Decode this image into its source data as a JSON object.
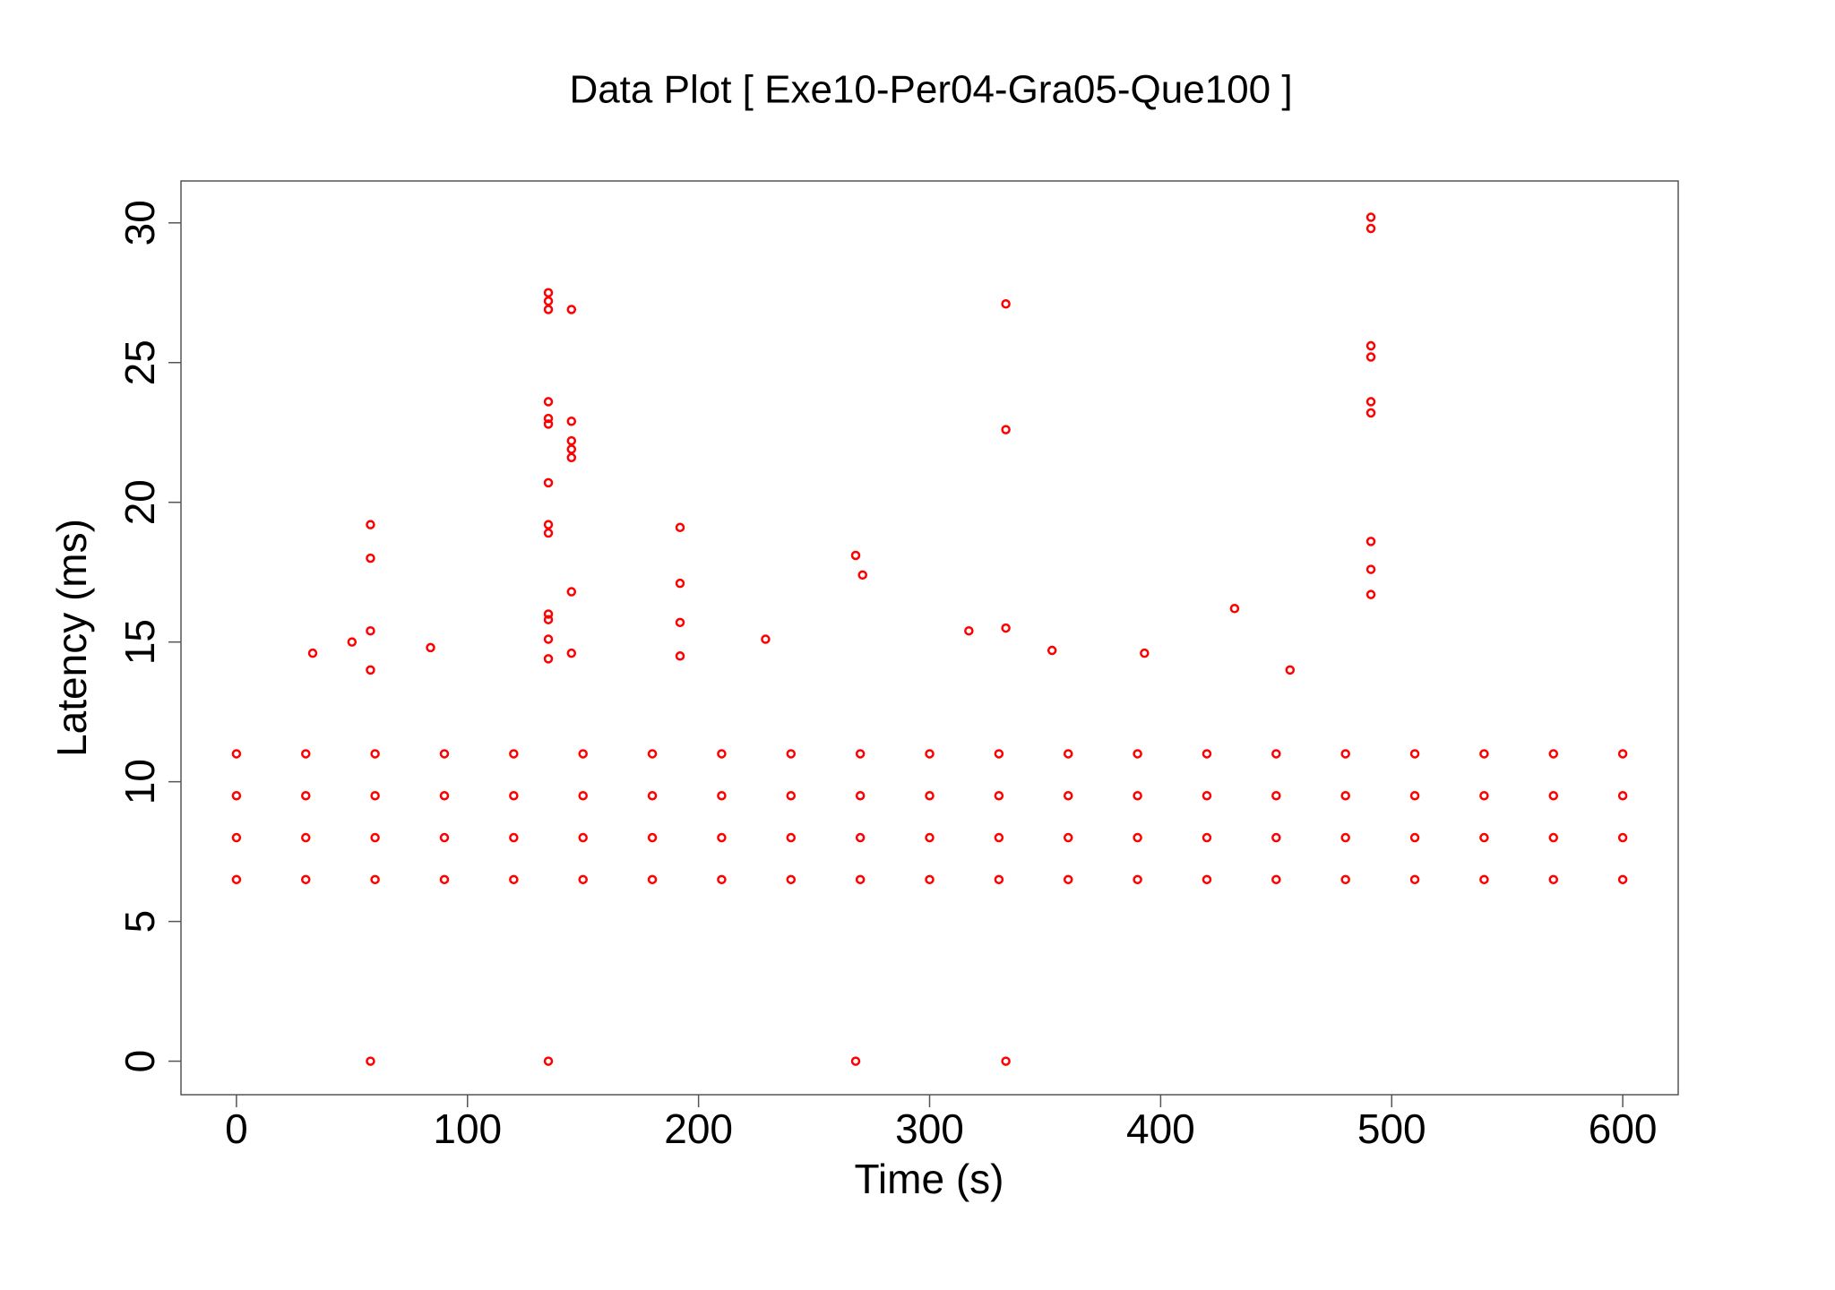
{
  "chart_data": {
    "type": "scatter",
    "title": "Data Plot [ Exe10-Per04-Gra05-Que100 ]",
    "x_label": "Time (s)",
    "y_label": "Latency (ms)",
    "color": "#ff0000",
    "xlim": [
      -24,
      624
    ],
    "ylim": [
      -1.2,
      31.5
    ],
    "xticks": [
      0,
      100,
      200,
      300,
      400,
      500,
      600
    ],
    "yticks": [
      0,
      5,
      10,
      15,
      20,
      25,
      30
    ],
    "x": [
      0,
      0,
      0,
      0,
      30,
      30,
      30,
      30,
      60,
      60,
      60,
      60,
      90,
      90,
      90,
      90,
      120,
      120,
      120,
      120,
      150,
      150,
      150,
      150,
      180,
      180,
      180,
      180,
      210,
      210,
      210,
      210,
      240,
      240,
      240,
      240,
      270,
      270,
      270,
      270,
      300,
      300,
      300,
      300,
      330,
      330,
      330,
      330,
      360,
      360,
      360,
      360,
      390,
      390,
      390,
      390,
      420,
      420,
      420,
      420,
      450,
      450,
      450,
      450,
      480,
      480,
      480,
      480,
      510,
      510,
      510,
      510,
      540,
      540,
      540,
      540,
      570,
      570,
      570,
      570,
      600,
      600,
      600,
      600,
      58,
      58,
      58,
      58,
      58,
      135,
      135,
      135,
      135,
      135,
      135,
      135,
      135,
      135,
      135,
      135,
      135,
      135,
      135,
      145,
      145,
      145,
      145,
      145,
      145,
      145,
      192,
      192,
      192,
      192,
      268,
      268,
      271,
      333,
      333,
      333,
      333,
      491,
      491,
      491,
      491,
      491,
      491,
      491,
      491,
      491,
      432,
      229,
      33,
      50,
      84,
      317,
      353,
      393,
      456
    ],
    "values": [
      6.5,
      8,
      9.5,
      11,
      6.5,
      8,
      9.5,
      11,
      6.5,
      8,
      9.5,
      11,
      6.5,
      8,
      9.5,
      11,
      6.5,
      8,
      9.5,
      11,
      6.5,
      8,
      9.5,
      11,
      6.5,
      8,
      9.5,
      11,
      6.5,
      8,
      9.5,
      11,
      6.5,
      8,
      9.5,
      11,
      6.5,
      8,
      9.5,
      11,
      6.5,
      8,
      9.5,
      11,
      6.5,
      8,
      9.5,
      11,
      6.5,
      8,
      9.5,
      11,
      6.5,
      8,
      9.5,
      11,
      6.5,
      8,
      9.5,
      11,
      6.5,
      8,
      9.5,
      11,
      6.5,
      8,
      9.5,
      11,
      6.5,
      8,
      9.5,
      11,
      6.5,
      8,
      9.5,
      11,
      6.5,
      8,
      9.5,
      11,
      6.5,
      8,
      9.5,
      11,
      19.2,
      18,
      15.4,
      14,
      0,
      27.5,
      27.2,
      26.9,
      23.6,
      23,
      22.8,
      20.7,
      19.2,
      18.9,
      16,
      15.8,
      15.1,
      14.4,
      0,
      26.9,
      22.9,
      22.2,
      21.9,
      21.6,
      16.8,
      14.6,
      19.1,
      17.1,
      15.7,
      14.5,
      18.1,
      0,
      17.4,
      27.1,
      22.6,
      15.5,
      0,
      30.2,
      29.8,
      25.6,
      25.2,
      23.6,
      23.2,
      18.6,
      17.6,
      16.7,
      16.2,
      15.1,
      14.6,
      15,
      14.8,
      15.4,
      14.7,
      14.6,
      14
    ]
  }
}
